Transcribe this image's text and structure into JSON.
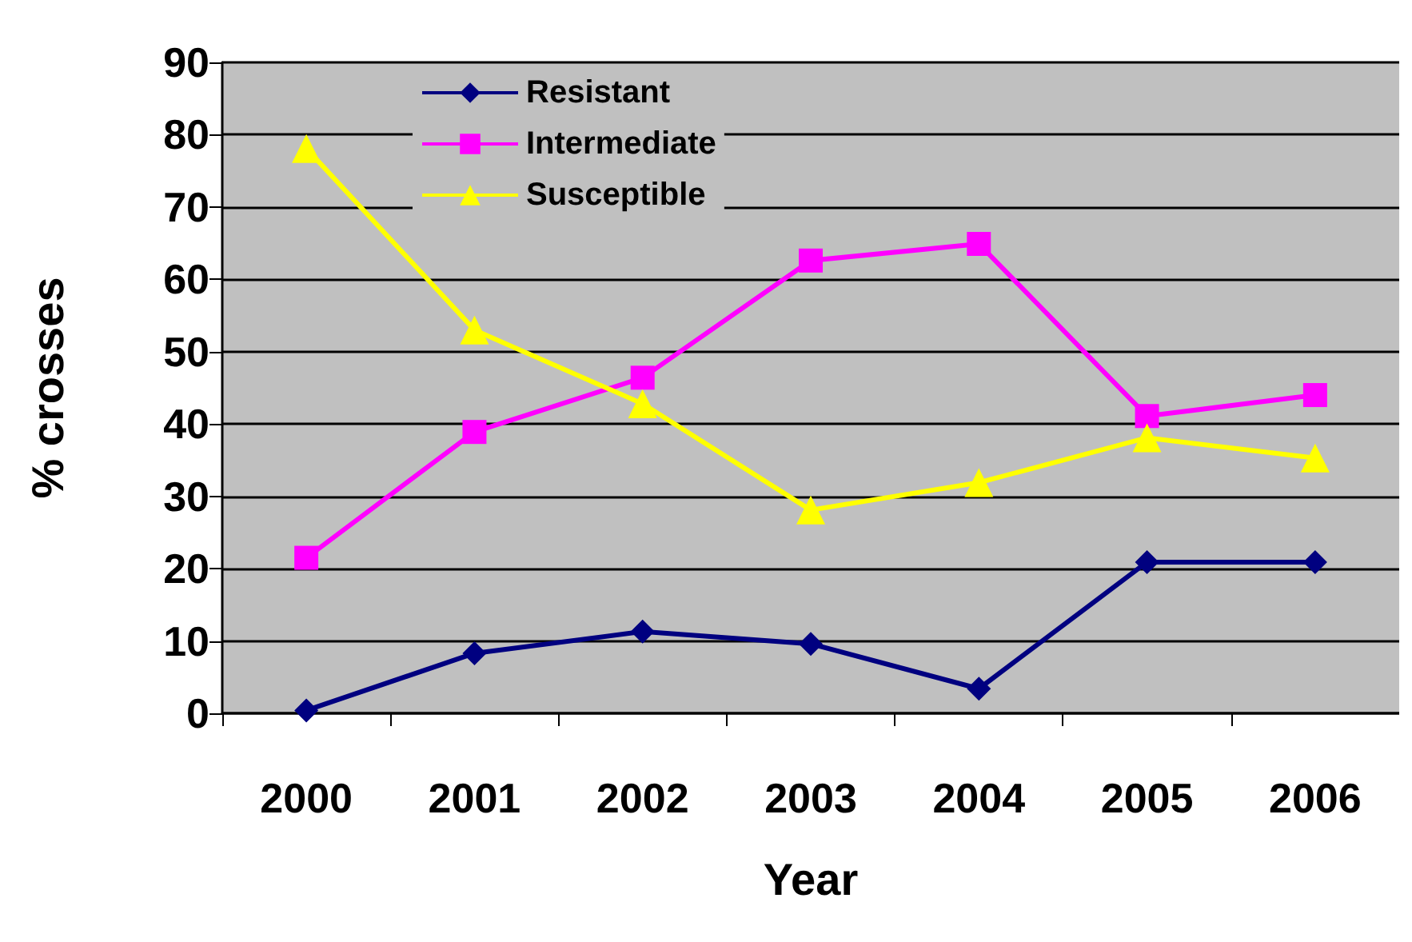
{
  "chart_data": {
    "type": "line",
    "xlabel": "Year",
    "ylabel": "% crosses",
    "categories": [
      "2000",
      "2001",
      "2002",
      "2003",
      "2004",
      "2005",
      "2006"
    ],
    "series": [
      {
        "name": "Resistant",
        "color": "#000080",
        "marker": "diamond",
        "values": [
          0.4,
          8.3,
          11.3,
          9.6,
          3.4,
          20.9,
          20.9
        ]
      },
      {
        "name": "Intermediate",
        "color": "#ff00ff",
        "marker": "square",
        "values": [
          21.5,
          38.9,
          46.4,
          62.6,
          64.9,
          41.1,
          44.0
        ]
      },
      {
        "name": "Susceptible",
        "color": "#ffff00",
        "marker": "triangle",
        "values": [
          78.1,
          53.0,
          42.8,
          28.1,
          31.9,
          38.1,
          35.3
        ]
      }
    ],
    "ylim": [
      0,
      90
    ],
    "yticks": [
      0,
      10,
      20,
      30,
      40,
      50,
      60,
      70,
      80,
      90
    ],
    "grid": "y",
    "legend": "top left"
  }
}
